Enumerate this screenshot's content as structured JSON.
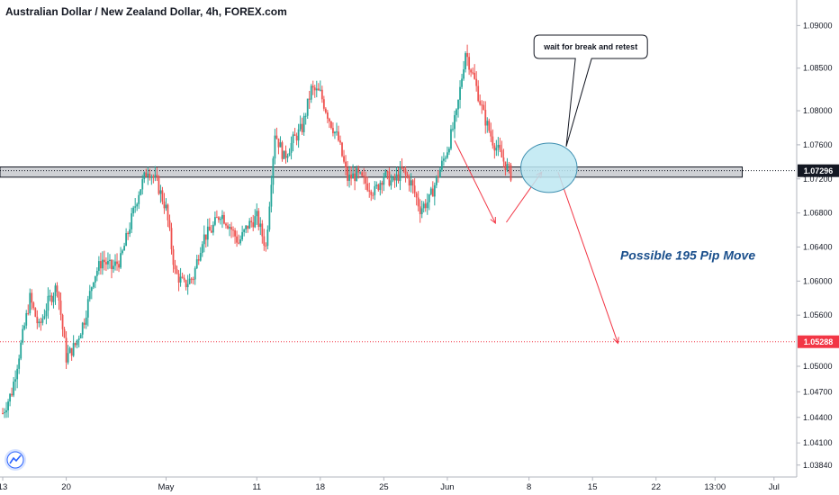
{
  "header": {
    "title": "Australian Dollar / New Zealand Dollar, 4h, FOREX.com"
  },
  "chart_data": {
    "type": "candlestick",
    "ylim": [
      1.037,
      1.093
    ],
    "y_ticks": [
      "1.09000",
      "1.08500",
      "1.08000",
      "1.07600",
      "1.07200",
      "1.06800",
      "1.06400",
      "1.06000",
      "1.05600",
      "1.05000",
      "1.04700",
      "1.04400",
      "1.04100",
      "1.03840"
    ],
    "y_tick_values": [
      1.09,
      1.085,
      1.08,
      1.076,
      1.072,
      1.068,
      1.064,
      1.06,
      1.056,
      1.05,
      1.047,
      1.044,
      1.041,
      1.0384
    ],
    "x_ticks": [
      "13",
      "20",
      "May",
      "11",
      "18",
      "25",
      "Jun",
      "8",
      "15",
      "22",
      "13:00",
      "Jul"
    ],
    "x_tick_days": [
      0,
      7,
      18,
      28,
      35,
      42,
      49,
      58,
      65,
      72,
      78.5,
      85
    ],
    "x_range_days": [
      -0.3,
      87.5
    ],
    "price_path": [
      [
        0,
        1.0445
      ],
      [
        1,
        1.047
      ],
      [
        2,
        1.0525
      ],
      [
        3,
        1.058
      ],
      [
        4,
        1.0545
      ],
      [
        5,
        1.0575
      ],
      [
        6,
        1.0595
      ],
      [
        7,
        1.051
      ],
      [
        8,
        1.0525
      ],
      [
        9,
        1.0555
      ],
      [
        10,
        1.0605
      ],
      [
        11,
        1.0625
      ],
      [
        12,
        1.0615
      ],
      [
        13,
        1.0625
      ],
      [
        14,
        1.0665
      ],
      [
        15,
        1.0705
      ],
      [
        16,
        1.0732
      ],
      [
        17,
        1.0715
      ],
      [
        18,
        1.0685
      ],
      [
        19,
        1.061
      ],
      [
        20,
        1.0595
      ],
      [
        21,
        1.0605
      ],
      [
        22,
        1.065
      ],
      [
        23,
        1.066
      ],
      [
        24,
        1.068
      ],
      [
        25,
        1.0665
      ],
      [
        26,
        1.0645
      ],
      [
        27,
        1.0665
      ],
      [
        28,
        1.0675
      ],
      [
        29,
        1.064
      ],
      [
        30,
        1.0775
      ],
      [
        31,
        1.0745
      ],
      [
        32,
        1.0765
      ],
      [
        33,
        1.078
      ],
      [
        34,
        1.0825
      ],
      [
        35,
        1.082
      ],
      [
        36,
        1.079
      ],
      [
        37,
        1.0765
      ],
      [
        38,
        1.072
      ],
      [
        39,
        1.0725
      ],
      [
        40,
        1.0715
      ],
      [
        41,
        1.0705
      ],
      [
        42,
        1.0725
      ],
      [
        43,
        1.0715
      ],
      [
        44,
        1.073
      ],
      [
        45,
        1.0715
      ],
      [
        46,
        1.0685
      ],
      [
        47,
        1.0695
      ],
      [
        48,
        1.0725
      ],
      [
        49,
        1.0755
      ],
      [
        50,
        1.0795
      ],
      [
        51,
        1.087
      ],
      [
        52,
        1.0835
      ],
      [
        53,
        1.0795
      ],
      [
        54,
        1.0765
      ],
      [
        55,
        1.0745
      ],
      [
        56,
        1.0725
      ]
    ],
    "zones": [
      {
        "type": "rectangle",
        "y_from": 1.0722,
        "y_to": 1.0734,
        "x_from": -0.3,
        "x_to": 81.5
      }
    ],
    "horizontal_lines": [
      {
        "y": 1.07296,
        "color": "#131722",
        "style": "dotted"
      },
      {
        "y": 1.05288,
        "color": "#f23645",
        "style": "dotted"
      }
    ],
    "price_labels": [
      {
        "text": "1.07296",
        "y": 1.07296,
        "color": "#131722"
      },
      {
        "text": "1.05288",
        "y": 1.05288,
        "color": "#f23645"
      }
    ],
    "arrows": [
      {
        "from": [
          49.8,
          1.0765
        ],
        "to": [
          54.3,
          1.0668
        ],
        "color": "#f23645"
      },
      {
        "from": [
          55.5,
          1.0669
        ],
        "to": [
          59.4,
          1.0728
        ],
        "color": "#f23645"
      },
      {
        "from": [
          61.2,
          1.0728
        ],
        "to": [
          67.8,
          1.0527
        ],
        "color": "#f23645"
      }
    ],
    "ellipse": {
      "cx": 60.2,
      "cy": 1.0733,
      "rx_days": 3.1,
      "ry_price": 0.0029,
      "fill": "#bde8f2",
      "stroke": "#3f8fb0"
    },
    "callout": {
      "text": "wait for break and retest",
      "x": 64.8,
      "y": 1.0875,
      "pointer_to": [
        62.1,
        1.0758
      ]
    },
    "annotation": {
      "text": "Possible 195 Pip Move",
      "x": 75.5,
      "y": 1.0625
    },
    "colors": {
      "up": "#26a69a",
      "down": "#ef5350",
      "axis": "#b2b5be",
      "resistance_line": "#f23645",
      "note": "#1a4f8c",
      "logo": "#2962ff"
    }
  }
}
